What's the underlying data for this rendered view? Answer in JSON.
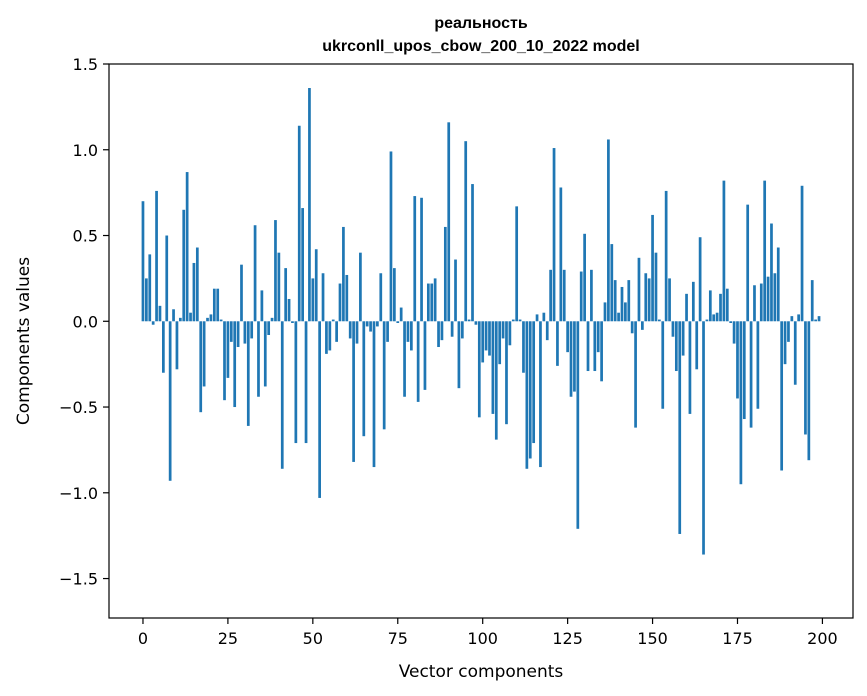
{
  "chart_data": {
    "type": "bar",
    "title": "реальность",
    "subtitle": "ukrconll_upos_cbow_200_10_2022 model",
    "xlabel": "Vector components",
    "ylabel": "Components values",
    "xlim": [
      -10,
      209
    ],
    "ylim": [
      -1.73,
      1.5
    ],
    "xticks": [
      0,
      25,
      50,
      75,
      100,
      125,
      150,
      175,
      200
    ],
    "xtick_labels": [
      "0",
      "25",
      "50",
      "75",
      "100",
      "125",
      "150",
      "175",
      "200"
    ],
    "yticks": [
      1.5,
      1.0,
      0.5,
      0.0,
      -0.5,
      -1.0,
      -1.5
    ],
    "ytick_labels": [
      "1.5",
      "1.0",
      "0.5",
      "0.0",
      "−0.5",
      "−1.0",
      "−1.5"
    ],
    "bar_color": "#1f77b4",
    "grid": false,
    "x": [
      0,
      1,
      2,
      3,
      4,
      5,
      6,
      7,
      8,
      9,
      10,
      11,
      12,
      13,
      14,
      15,
      16,
      17,
      18,
      19,
      20,
      21,
      22,
      23,
      24,
      25,
      26,
      27,
      28,
      29,
      30,
      31,
      32,
      33,
      34,
      35,
      36,
      37,
      38,
      39,
      40,
      41,
      42,
      43,
      44,
      45,
      46,
      47,
      48,
      49,
      50,
      51,
      52,
      53,
      54,
      55,
      56,
      57,
      58,
      59,
      60,
      61,
      62,
      63,
      64,
      65,
      66,
      67,
      68,
      69,
      70,
      71,
      72,
      73,
      74,
      75,
      76,
      77,
      78,
      79,
      80,
      81,
      82,
      83,
      84,
      85,
      86,
      87,
      88,
      89,
      90,
      91,
      92,
      93,
      94,
      95,
      96,
      97,
      98,
      99,
      100,
      101,
      102,
      103,
      104,
      105,
      106,
      107,
      108,
      109,
      110,
      111,
      112,
      113,
      114,
      115,
      116,
      117,
      118,
      119,
      120,
      121,
      122,
      123,
      124,
      125,
      126,
      127,
      128,
      129,
      130,
      131,
      132,
      133,
      134,
      135,
      136,
      137,
      138,
      139,
      140,
      141,
      142,
      143,
      144,
      145,
      146,
      147,
      148,
      149,
      150,
      151,
      152,
      153,
      154,
      155,
      156,
      157,
      158,
      159,
      160,
      161,
      162,
      163,
      164,
      165,
      166,
      167,
      168,
      169,
      170,
      171,
      172,
      173,
      174,
      175,
      176,
      177,
      178,
      179,
      180,
      181,
      182,
      183,
      184,
      185,
      186,
      187,
      188,
      189,
      190,
      191,
      192,
      193,
      194,
      195,
      196,
      197,
      198,
      199
    ],
    "values": [
      0.7,
      0.25,
      0.39,
      -0.02,
      0.76,
      0.09,
      -0.3,
      0.5,
      -0.93,
      0.07,
      -0.28,
      0.02,
      0.65,
      0.87,
      0.05,
      0.34,
      0.43,
      -0.53,
      -0.38,
      0.02,
      0.04,
      0.19,
      0.19,
      0.01,
      -0.46,
      -0.33,
      -0.12,
      -0.5,
      -0.15,
      0.33,
      -0.13,
      -0.61,
      -0.1,
      0.56,
      -0.44,
      0.18,
      -0.38,
      -0.08,
      0.02,
      0.59,
      0.4,
      -0.86,
      0.31,
      0.13,
      -0.01,
      -0.71,
      1.14,
      0.66,
      -0.71,
      1.36,
      0.25,
      0.42,
      -1.03,
      0.28,
      -0.19,
      -0.17,
      0.01,
      -0.12,
      0.22,
      0.55,
      0.27,
      -0.1,
      -0.82,
      -0.13,
      0.4,
      -0.67,
      -0.03,
      -0.06,
      -0.85,
      -0.03,
      0.28,
      -0.63,
      -0.12,
      0.99,
      0.31,
      -0.01,
      0.08,
      -0.44,
      -0.12,
      -0.17,
      0.73,
      -0.47,
      0.72,
      -0.4,
      0.22,
      0.22,
      0.25,
      -0.15,
      -0.11,
      0.55,
      1.16,
      -0.09,
      0.36,
      -0.39,
      -0.1,
      1.05,
      0.01,
      0.8,
      -0.02,
      -0.56,
      -0.24,
      -0.17,
      -0.2,
      -0.54,
      -0.69,
      -0.25,
      -0.1,
      -0.6,
      -0.14,
      0.01,
      0.67,
      0.01,
      -0.3,
      -0.86,
      -0.8,
      -0.71,
      0.04,
      -0.85,
      0.05,
      -0.11,
      0.3,
      1.01,
      -0.26,
      0.78,
      0.3,
      -0.18,
      -0.44,
      -0.41,
      -1.21,
      0.29,
      0.51,
      -0.29,
      0.3,
      -0.29,
      -0.18,
      -0.35,
      0.11,
      1.06,
      0.45,
      0.24,
      0.05,
      0.2,
      0.11,
      0.24,
      -0.07,
      -0.62,
      0.37,
      -0.05,
      0.28,
      0.25,
      0.62,
      0.4,
      0.01,
      -0.51,
      0.76,
      0.25,
      -0.09,
      -0.29,
      -1.24,
      -0.2,
      0.16,
      -0.54,
      0.23,
      -0.28,
      0.49,
      -1.36,
      0.01,
      0.18,
      0.04,
      0.05,
      0.16,
      0.82,
      0.19,
      -0.01,
      -0.13,
      -0.45,
      -0.95,
      -0.57,
      0.68,
      -0.62,
      0.21,
      -0.51,
      0.22,
      0.82,
      0.26,
      0.57,
      0.28,
      0.43,
      -0.87,
      -0.25,
      -0.12,
      0.03,
      -0.37,
      0.04,
      0.79,
      -0.66,
      -0.81,
      0.24,
      0.01,
      0.03
    ],
    "xtick_display_index_note_removed": null
  }
}
